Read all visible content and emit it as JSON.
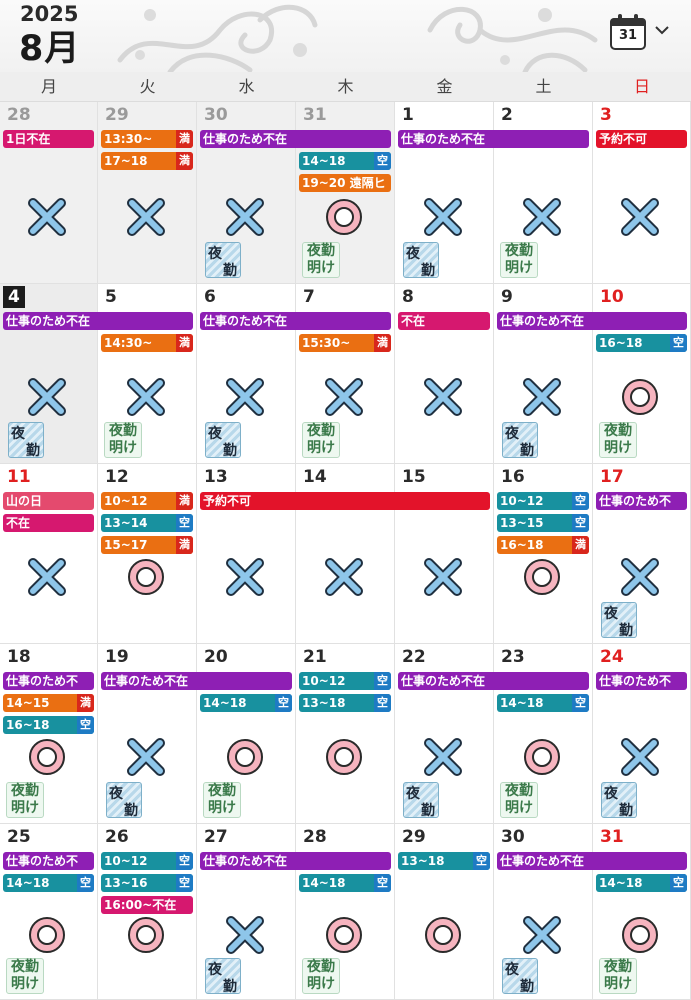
{
  "header": {
    "year": "2025",
    "month": "8月",
    "calendar_icon_day": "31",
    "calendar_icon": "calendar-icon",
    "chevron_icon": "chevron-down-icon"
  },
  "weekdays": [
    "月",
    "火",
    "水",
    "木",
    "金",
    "土",
    "日"
  ],
  "colors": {
    "purple": "#8e1fb4",
    "magenta": "#d6186f",
    "orange": "#ea6f12",
    "teal": "#18919f",
    "red": "#e3132a",
    "pink": "#e44a6e",
    "sunday_text": "#e02020"
  },
  "status_labels": {
    "full": "満",
    "vacant": "空"
  },
  "badges": {
    "night_shift": "夜勤",
    "night_shift_parts": [
      "夜",
      "勤"
    ],
    "after_night": [
      "夜勤",
      "明け"
    ]
  },
  "weeks": [
    {
      "days": [
        {
          "num": "28",
          "tone": "gray",
          "out": true,
          "mark": "x"
        },
        {
          "num": "29",
          "tone": "gray",
          "out": true,
          "mark": "x"
        },
        {
          "num": "30",
          "tone": "gray",
          "out": true,
          "mark": "x",
          "badge": "yakin"
        },
        {
          "num": "31",
          "tone": "gray",
          "out": true,
          "mark": "o",
          "badge": "ake"
        },
        {
          "num": "1",
          "tone": "normal",
          "mark": "x",
          "badge": "yakin"
        },
        {
          "num": "2",
          "tone": "normal",
          "mark": "x",
          "badge": "ake"
        },
        {
          "num": "3",
          "tone": "red",
          "mark": "x"
        }
      ],
      "events": [
        {
          "col": 0,
          "span": 1,
          "row": 0,
          "text": "1日不在",
          "color": "magenta"
        },
        {
          "col": 1,
          "span": 1,
          "row": 0,
          "text": "13:30~",
          "color": "orange",
          "tag": "満"
        },
        {
          "col": 1,
          "span": 1,
          "row": 1,
          "text": "17~18",
          "color": "orange",
          "tag": "満"
        },
        {
          "col": 2,
          "span": 2,
          "row": 0,
          "text": "仕事のため不在",
          "color": "purple"
        },
        {
          "col": 3,
          "span": 1,
          "row": 1,
          "text": "14~18",
          "color": "teal",
          "tag": "空"
        },
        {
          "col": 3,
          "span": 1,
          "row": 2,
          "text": "19~20 遠隔ヒ",
          "color": "orange"
        },
        {
          "col": 4,
          "span": 2,
          "row": 0,
          "text": "仕事のため不在",
          "color": "purple"
        },
        {
          "col": 6,
          "span": 1,
          "row": 0,
          "text": "予約不可",
          "color": "red"
        }
      ]
    },
    {
      "days": [
        {
          "num": "4",
          "tone": "today",
          "today": true,
          "mark": "x",
          "badge": "yakin"
        },
        {
          "num": "5",
          "tone": "normal",
          "mark": "x",
          "badge": "ake"
        },
        {
          "num": "6",
          "tone": "normal",
          "mark": "x",
          "badge": "yakin"
        },
        {
          "num": "7",
          "tone": "normal",
          "mark": "x",
          "badge": "ake"
        },
        {
          "num": "8",
          "tone": "normal",
          "mark": "x"
        },
        {
          "num": "9",
          "tone": "normal",
          "mark": "x",
          "badge": "yakin"
        },
        {
          "num": "10",
          "tone": "red",
          "mark": "o",
          "badge": "ake"
        }
      ],
      "events": [
        {
          "col": 0,
          "span": 2,
          "row": 0,
          "text": "仕事のため不在",
          "color": "purple"
        },
        {
          "col": 1,
          "span": 1,
          "row": 1,
          "text": "14:30~",
          "color": "orange",
          "tag": "満"
        },
        {
          "col": 2,
          "span": 2,
          "row": 0,
          "text": "仕事のため不在",
          "color": "purple"
        },
        {
          "col": 3,
          "span": 1,
          "row": 1,
          "text": "15:30~",
          "color": "orange",
          "tag": "満"
        },
        {
          "col": 4,
          "span": 1,
          "row": 0,
          "text": "不在",
          "color": "magenta"
        },
        {
          "col": 5,
          "span": 2,
          "row": 0,
          "text": "仕事のため不在",
          "color": "purple"
        },
        {
          "col": 6,
          "span": 1,
          "row": 1,
          "text": "16~18",
          "color": "teal",
          "tag": "空"
        }
      ]
    },
    {
      "days": [
        {
          "num": "11",
          "tone": "red",
          "mark": "x"
        },
        {
          "num": "12",
          "tone": "normal",
          "mark": "o"
        },
        {
          "num": "13",
          "tone": "normal",
          "mark": "x"
        },
        {
          "num": "14",
          "tone": "normal",
          "mark": "x"
        },
        {
          "num": "15",
          "tone": "normal",
          "mark": "x"
        },
        {
          "num": "16",
          "tone": "normal",
          "mark": "o"
        },
        {
          "num": "17",
          "tone": "red",
          "mark": "x",
          "badge": "yakin"
        }
      ],
      "events": [
        {
          "col": 0,
          "span": 1,
          "row": 0,
          "text": "山の日",
          "color": "pink"
        },
        {
          "col": 0,
          "span": 1,
          "row": 1,
          "text": "不在",
          "color": "magenta"
        },
        {
          "col": 1,
          "span": 1,
          "row": 0,
          "text": "10~12",
          "color": "orange",
          "tag": "満"
        },
        {
          "col": 1,
          "span": 1,
          "row": 1,
          "text": "13~14",
          "color": "teal",
          "tag": "空"
        },
        {
          "col": 1,
          "span": 1,
          "row": 2,
          "text": "15~17",
          "color": "orange",
          "tag": "満"
        },
        {
          "col": 2,
          "span": 3,
          "row": 0,
          "text": "予約不可",
          "color": "red"
        },
        {
          "col": 5,
          "span": 1,
          "row": 0,
          "text": "10~12",
          "color": "teal",
          "tag": "空"
        },
        {
          "col": 5,
          "span": 1,
          "row": 1,
          "text": "13~15",
          "color": "teal",
          "tag": "空"
        },
        {
          "col": 5,
          "span": 1,
          "row": 2,
          "text": "16~18",
          "color": "orange",
          "tag": "満"
        },
        {
          "col": 6,
          "span": 1,
          "row": 0,
          "text": "仕事のため不",
          "color": "purple"
        }
      ]
    },
    {
      "days": [
        {
          "num": "18",
          "tone": "normal",
          "mark": "o",
          "badge": "ake"
        },
        {
          "num": "19",
          "tone": "normal",
          "mark": "x",
          "badge": "yakin"
        },
        {
          "num": "20",
          "tone": "normal",
          "mark": "o",
          "badge": "ake"
        },
        {
          "num": "21",
          "tone": "normal",
          "mark": "o"
        },
        {
          "num": "22",
          "tone": "normal",
          "mark": "x",
          "badge": "yakin"
        },
        {
          "num": "23",
          "tone": "normal",
          "mark": "o",
          "badge": "ake"
        },
        {
          "num": "24",
          "tone": "red",
          "mark": "x",
          "badge": "yakin"
        }
      ],
      "events": [
        {
          "col": 0,
          "span": 1,
          "row": 0,
          "text": "仕事のため不",
          "color": "purple"
        },
        {
          "col": 0,
          "span": 1,
          "row": 1,
          "text": "14~15",
          "color": "orange",
          "tag": "満"
        },
        {
          "col": 0,
          "span": 1,
          "row": 2,
          "text": "16~18",
          "color": "teal",
          "tag": "空"
        },
        {
          "col": 1,
          "span": 2,
          "row": 0,
          "text": "仕事のため不在",
          "color": "purple"
        },
        {
          "col": 2,
          "span": 1,
          "row": 1,
          "text": "14~18",
          "color": "teal",
          "tag": "空"
        },
        {
          "col": 3,
          "span": 1,
          "row": 0,
          "text": "10~12",
          "color": "teal",
          "tag": "空"
        },
        {
          "col": 3,
          "span": 1,
          "row": 1,
          "text": "13~18",
          "color": "teal",
          "tag": "空"
        },
        {
          "col": 4,
          "span": 2,
          "row": 0,
          "text": "仕事のため不在",
          "color": "purple"
        },
        {
          "col": 5,
          "span": 1,
          "row": 1,
          "text": "14~18",
          "color": "teal",
          "tag": "空"
        },
        {
          "col": 6,
          "span": 1,
          "row": 0,
          "text": "仕事のため不",
          "color": "purple"
        }
      ]
    },
    {
      "days": [
        {
          "num": "25",
          "tone": "normal",
          "mark": "o",
          "badge": "ake"
        },
        {
          "num": "26",
          "tone": "normal",
          "mark": "o"
        },
        {
          "num": "27",
          "tone": "normal",
          "mark": "x",
          "badge": "yakin"
        },
        {
          "num": "28",
          "tone": "normal",
          "mark": "o",
          "badge": "ake"
        },
        {
          "num": "29",
          "tone": "normal",
          "mark": "o"
        },
        {
          "num": "30",
          "tone": "normal",
          "mark": "x",
          "badge": "yakin"
        },
        {
          "num": "31",
          "tone": "red",
          "mark": "o",
          "badge": "ake"
        }
      ],
      "events": [
        {
          "col": 0,
          "span": 1,
          "row": 0,
          "text": "仕事のため不",
          "color": "purple"
        },
        {
          "col": 0,
          "span": 1,
          "row": 1,
          "text": "14~18",
          "color": "teal",
          "tag": "空"
        },
        {
          "col": 1,
          "span": 1,
          "row": 0,
          "text": "10~12",
          "color": "teal",
          "tag": "空"
        },
        {
          "col": 1,
          "span": 1,
          "row": 1,
          "text": "13~16",
          "color": "teal",
          "tag": "空"
        },
        {
          "col": 1,
          "span": 1,
          "row": 2,
          "text": "16:00~不在",
          "color": "magenta"
        },
        {
          "col": 2,
          "span": 2,
          "row": 0,
          "text": "仕事のため不在",
          "color": "purple"
        },
        {
          "col": 3,
          "span": 1,
          "row": 1,
          "text": "14~18",
          "color": "teal",
          "tag": "空"
        },
        {
          "col": 4,
          "span": 1,
          "row": 0,
          "text": "13~18",
          "color": "teal",
          "tag": "空"
        },
        {
          "col": 5,
          "span": 2,
          "row": 0,
          "text": "仕事のため不在",
          "color": "purple"
        },
        {
          "col": 6,
          "span": 1,
          "row": 1,
          "text": "14~18",
          "color": "teal",
          "tag": "空"
        }
      ]
    }
  ]
}
